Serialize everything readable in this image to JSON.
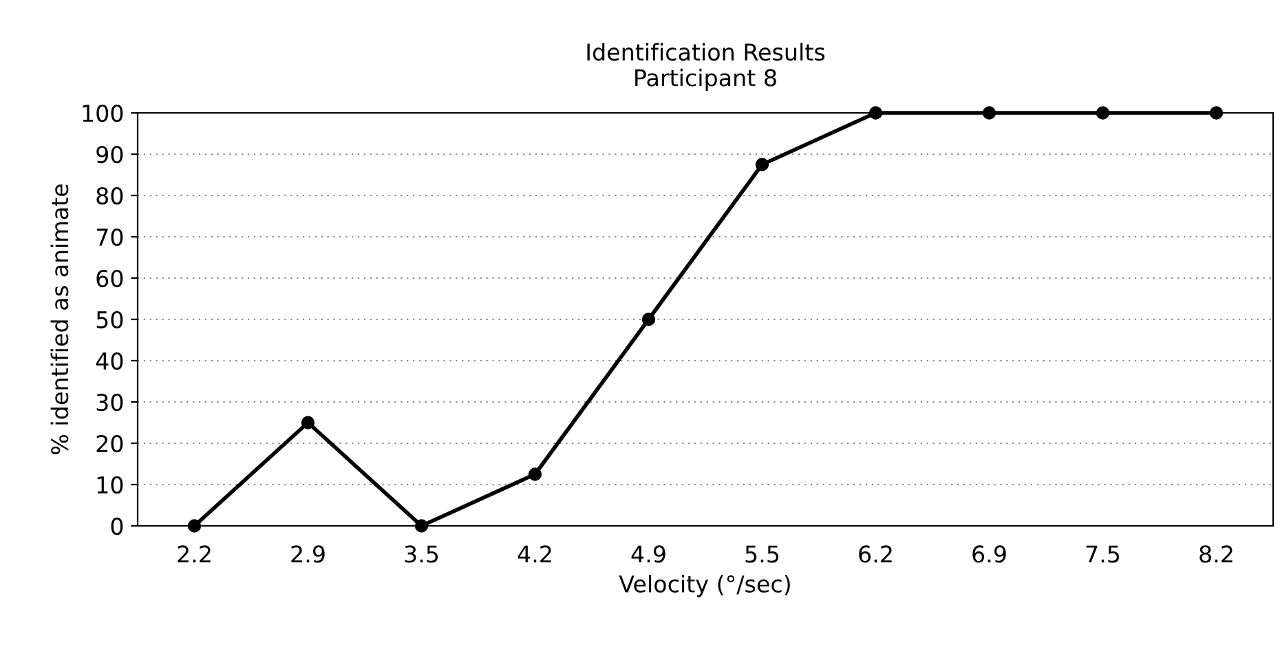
{
  "chart_data": {
    "type": "line",
    "title": "Identification Results\nParticipant 8",
    "xlabel": "Velocity (°/sec)",
    "ylabel": "% identified as animate",
    "categories": [
      "2.2",
      "2.9",
      "3.5",
      "4.2",
      "4.9",
      "5.5",
      "6.2",
      "6.9",
      "7.5",
      "8.2"
    ],
    "series": [
      {
        "color": "#000000",
        "values": [
          0,
          25,
          0,
          12.5,
          50,
          87.5,
          100,
          100,
          100,
          100
        ]
      }
    ],
    "ylim": [
      0,
      100
    ],
    "yticks": [
      0,
      10,
      20,
      30,
      40,
      50,
      60,
      70,
      80,
      90,
      100
    ],
    "grid": "y",
    "marker": "circle",
    "line_style": "solid",
    "legend": false
  }
}
